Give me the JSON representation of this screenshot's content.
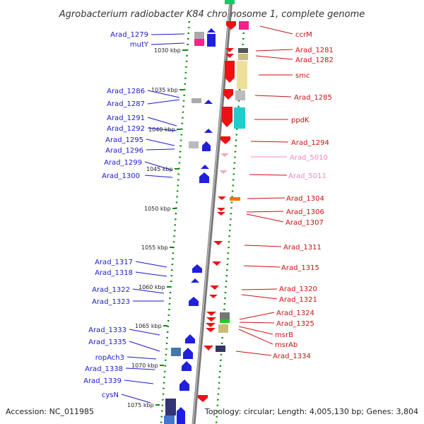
{
  "title": "Agrobacterium radiobacter K84 chromosome 1, complete genome",
  "footer": {
    "accession": "Accession: NC_011985",
    "summary": "Topology: circular; Length: 4,005,130 bp; Genes: 3,804"
  },
  "colors": {
    "minus_label": "#1a1acc",
    "plus_label": "#cc1111",
    "rna_label": "#ee88bb",
    "gene_blue": "#1f1fe0",
    "gene_red": "#ee1111",
    "gene_pink": "#f5a8c8",
    "tick_green": "#118811",
    "backbone": "#888888"
  },
  "kbp_ticks": [
    "1030 kbp",
    "1035 kbp",
    "1040 kbp",
    "1045 kbp",
    "1050 kbp",
    "1055 kbp",
    "1060 kbp",
    "1065 kbp",
    "1070 kbp",
    "1075 kbp"
  ],
  "left_genes": [
    "Arad_1279",
    "mutY",
    "Arad_1286",
    "Arad_1287",
    "Arad_1291",
    "Arad_1292",
    "Arad_1295",
    "Arad_1296",
    "Arad_1299",
    "Arad_1300",
    "Arad_1317",
    "Arad_1318",
    "Arad_1322",
    "Arad_1323",
    "Arad_1333",
    "Arad_1335",
    "ropAch3",
    "Arad_1338",
    "Arad_1339",
    "cysN"
  ],
  "right_genes": [
    "ccrM",
    "Arad_1281",
    "Arad_1282",
    "smc",
    "Arad_1285",
    "ppdK",
    "Arad_1294",
    "Arad_5010",
    "Arad_5011",
    "Arad_1304",
    "Arad_1306",
    "Arad_1307",
    "Arad_1311",
    "Arad_1315",
    "Arad_1320",
    "Arad_1321",
    "Arad_1324",
    "Arad_1325",
    "msrB",
    "msrAb",
    "Arad_1334"
  ],
  "rna_genes": [
    "Arad_5010",
    "Arad_5011"
  ]
}
